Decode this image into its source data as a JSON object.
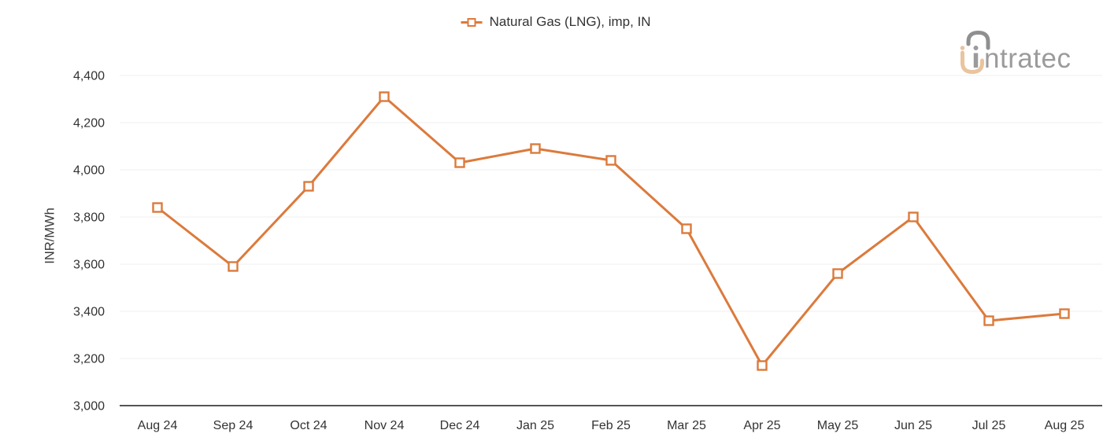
{
  "logo": {
    "text": "intratec",
    "gray": "#9b9b9b",
    "tan": "#e9c49e"
  },
  "axes": {
    "y_title": "INR/MWh"
  },
  "chart_data": {
    "type": "line",
    "title": "",
    "categories": [
      "Aug 24",
      "Sep 24",
      "Oct 24",
      "Nov 24",
      "Dec 24",
      "Jan 25",
      "Feb 25",
      "Mar 25",
      "Apr 25",
      "May 25",
      "Jun 25",
      "Jul 25",
      "Aug 25"
    ],
    "series": [
      {
        "name": "Natural Gas (LNG), imp, IN",
        "color": "#DC7A3C",
        "marker": "open-square",
        "values": [
          3840,
          3590,
          3930,
          4310,
          4030,
          4090,
          4040,
          3750,
          3170,
          3560,
          3800,
          3360,
          3390
        ]
      }
    ],
    "xlabel": "",
    "ylabel": "INR/MWh",
    "ylim": [
      3000,
      4400
    ],
    "ytick_values": [
      4400,
      4200,
      4000,
      3800,
      3600,
      3400,
      3200,
      3000
    ],
    "ytick_labels": [
      "4,400",
      "4,200",
      "4,000",
      "3,800",
      "3,600",
      "3,400",
      "3,200",
      "3,000"
    ],
    "grid": "horizontal-light",
    "legend_position": "top-center",
    "colors": {
      "gridline": "#efefef",
      "axis_line": "#555555",
      "tick_text": "#333333"
    }
  }
}
